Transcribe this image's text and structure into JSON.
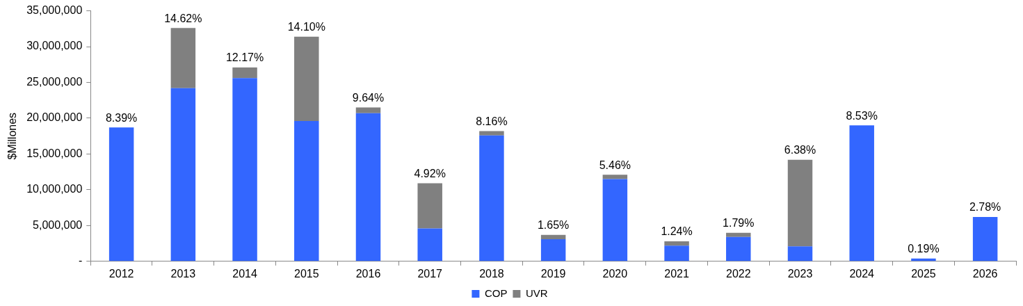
{
  "chart_data": {
    "type": "bar",
    "stacked": true,
    "ylabel": "$Millones",
    "categories": [
      "2012",
      "2013",
      "2014",
      "2015",
      "2016",
      "2017",
      "2018",
      "2019",
      "2020",
      "2021",
      "2022",
      "2023",
      "2024",
      "2025",
      "2026"
    ],
    "series": [
      {
        "name": "COP",
        "color": "#3366ff",
        "values": [
          18700000,
          24200000,
          25600000,
          19600000,
          20700000,
          4600000,
          17600000,
          3100000,
          11500000,
          2200000,
          3400000,
          2100000,
          19000000,
          400000,
          6200000
        ]
      },
      {
        "name": "UVR",
        "color": "#808080",
        "values": [
          0,
          8400000,
          1500000,
          11800000,
          800000,
          6300000,
          600000,
          600000,
          600000,
          600000,
          600000,
          12100000,
          0,
          0,
          0
        ]
      }
    ],
    "annotations": [
      {
        "text": "8.39%",
        "x": "2012",
        "y": 18700000
      },
      {
        "text": "14.62%",
        "x": "2013",
        "y": 32600000
      },
      {
        "text": "12.17%",
        "x": "2014",
        "y": 27100000
      },
      {
        "text": "14.10%",
        "x": "2015",
        "y": 31400000
      },
      {
        "text": "9.64%",
        "x": "2016",
        "y": 21500000
      },
      {
        "text": "4.92%",
        "x": "2017",
        "y": 10900000
      },
      {
        "text": "8.16%",
        "x": "2018",
        "y": 18200000
      },
      {
        "text": "1.65%",
        "x": "2019",
        "y": 3700000
      },
      {
        "text": "5.46%",
        "x": "2020",
        "y": 12100000
      },
      {
        "text": "1.24%",
        "x": "2021",
        "y": 2800000
      },
      {
        "text": "1.79%",
        "x": "2022",
        "y": 4000000
      },
      {
        "text": "6.38%",
        "x": "2023",
        "y": 14200000
      },
      {
        "text": "8.53%",
        "x": "2024",
        "y": 19000000
      },
      {
        "text": "0.19%",
        "x": "2025",
        "y": 400000
      },
      {
        "text": "2.78%",
        "x": "2026",
        "y": 6200000
      }
    ],
    "ylim": [
      0,
      35000000
    ],
    "yticks": [
      {
        "value": 0,
        "label": "-"
      },
      {
        "value": 5000000,
        "label": "5,000,000"
      },
      {
        "value": 10000000,
        "label": "10,000,000"
      },
      {
        "value": 15000000,
        "label": "15,000,000"
      },
      {
        "value": 20000000,
        "label": "20,000,000"
      },
      {
        "value": 25000000,
        "label": "25,000,000"
      },
      {
        "value": 30000000,
        "label": "30,000,000"
      },
      {
        "value": 35000000,
        "label": "35,000,000"
      }
    ],
    "grid": false,
    "legend": "bottom"
  }
}
